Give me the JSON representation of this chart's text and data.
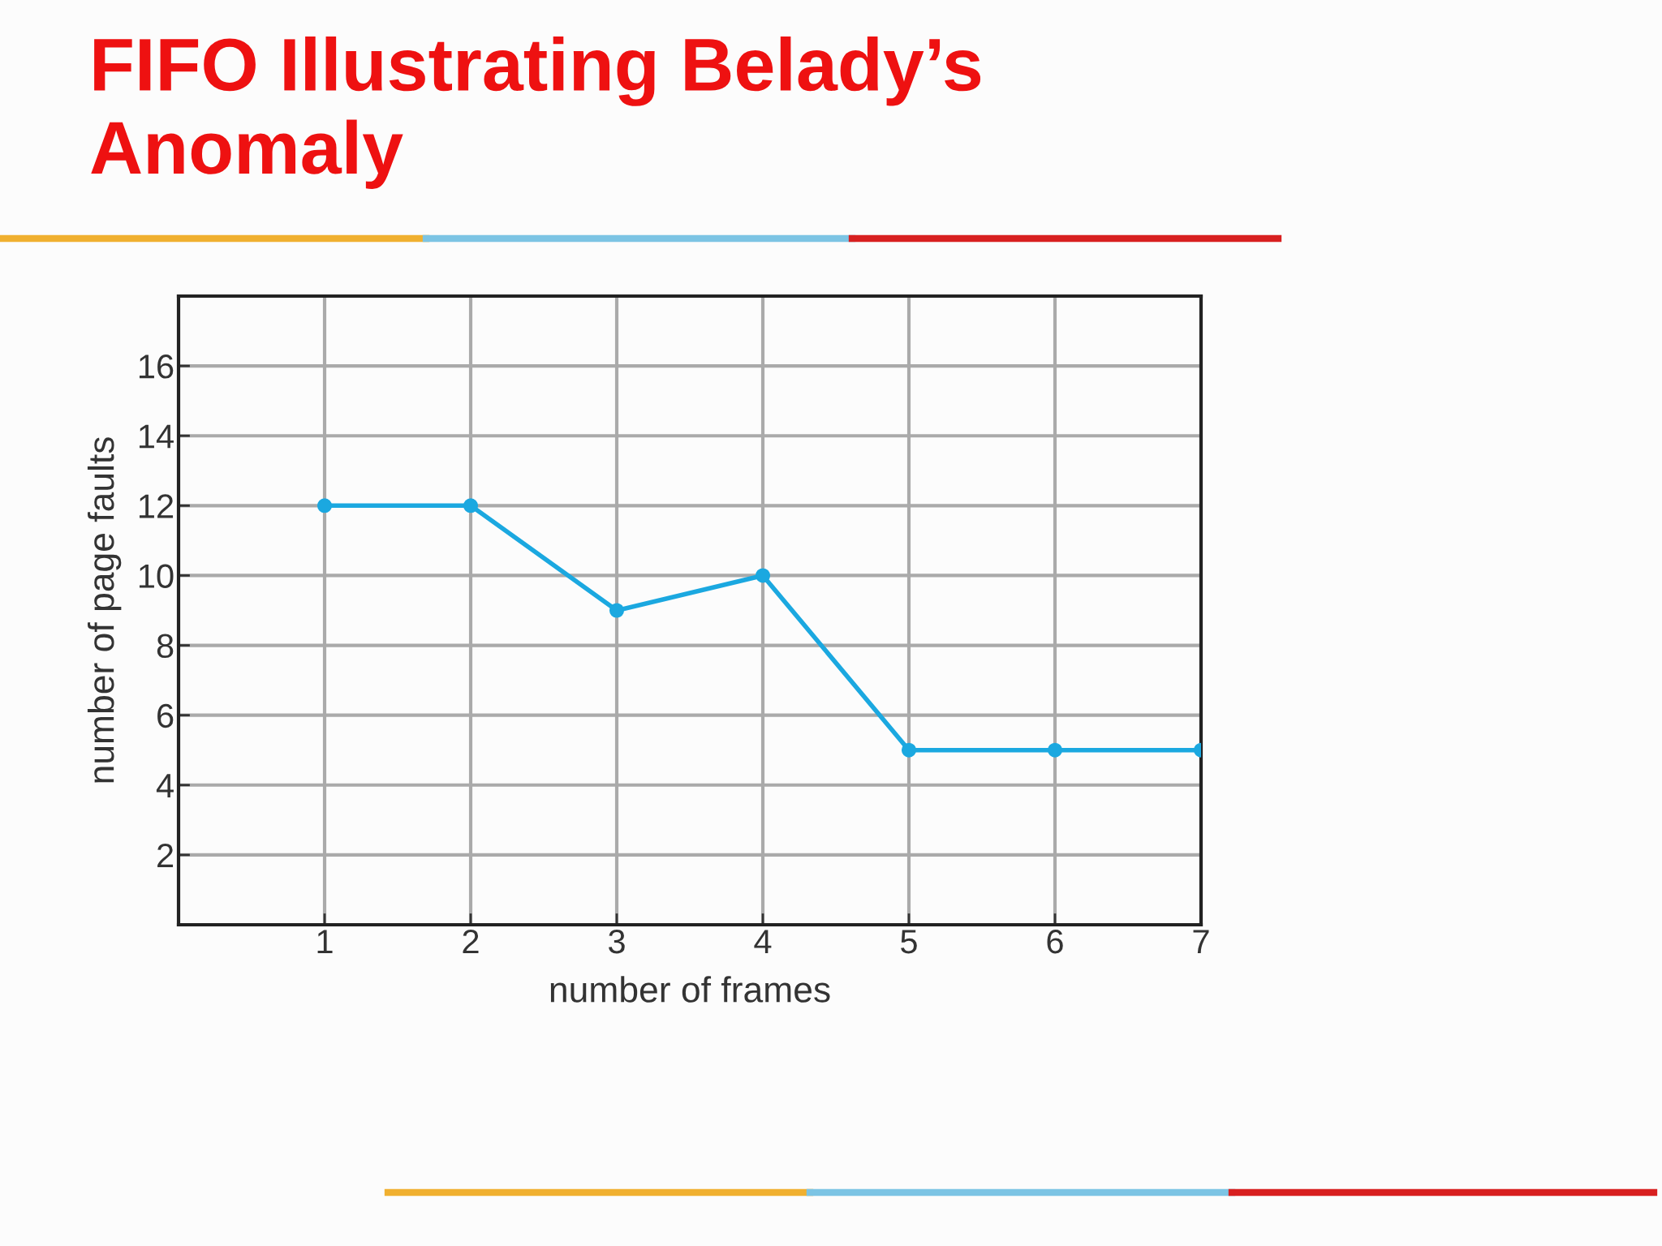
{
  "chart_data": {
    "type": "line",
    "title": "FIFO Illustrating Belady’s\nAnomaly",
    "xlabel": "number of frames",
    "ylabel": "number of page faults",
    "x": [
      1,
      2,
      3,
      4,
      5,
      6,
      7
    ],
    "series": [
      {
        "color": "#1ba8e0",
        "values": [
          12,
          12,
          9,
          10,
          5,
          5,
          5
        ]
      }
    ],
    "xlim": [
      0,
      7
    ],
    "xticks": [
      1,
      2,
      3,
      4,
      5,
      6,
      7
    ],
    "ylim": [
      0,
      18
    ],
    "yticks": [
      2,
      4,
      6,
      8,
      10,
      12,
      14,
      16
    ],
    "grid": true,
    "marker": "circle",
    "line_style": "solid",
    "legend": false
  }
}
